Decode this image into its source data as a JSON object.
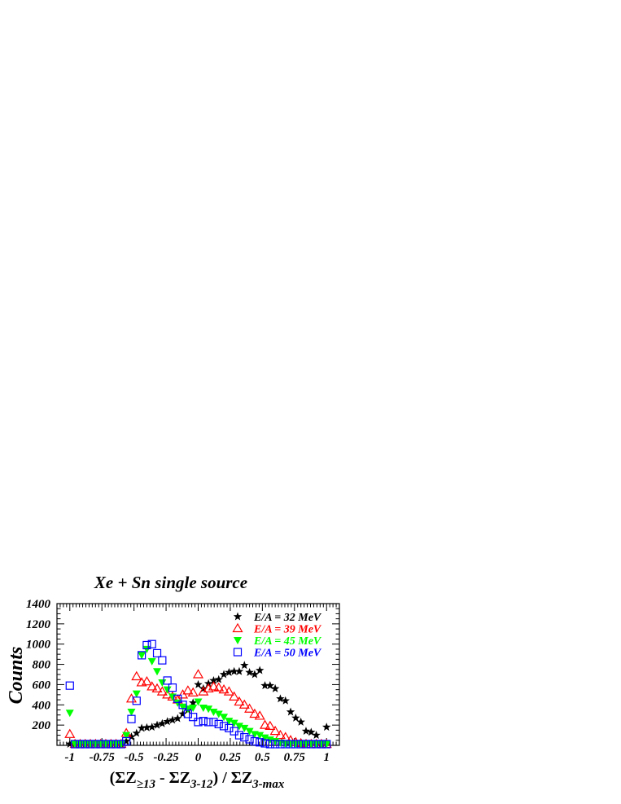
{
  "chart_data": {
    "type": "scatter",
    "title": "Xe + Sn single source",
    "ylabel": "Counts",
    "xlabel": {
      "open": "(ΣZ",
      "sub1": "≥13",
      "mid": " - ΣZ",
      "sub2": "3-12",
      "close": ") / ΣZ",
      "sub3": "3-max"
    },
    "xlim": [
      -1.1,
      1.1
    ],
    "ylim": [
      0,
      1400
    ],
    "x_ticks": [
      {
        "v": -1,
        "label": "-1"
      },
      {
        "v": -0.75,
        "label": "-0.75"
      },
      {
        "v": -0.5,
        "label": "-0.5"
      },
      {
        "v": -0.25,
        "label": "-0.25"
      },
      {
        "v": 0,
        "label": "0"
      },
      {
        "v": 0.25,
        "label": "0.25"
      },
      {
        "v": 0.5,
        "label": "0.5"
      },
      {
        "v": 0.75,
        "label": "0.75"
      },
      {
        "v": 1,
        "label": "1"
      }
    ],
    "y_ticks": [
      {
        "v": 200,
        "label": "200"
      },
      {
        "v": 400,
        "label": "400"
      },
      {
        "v": 600,
        "label": "600"
      },
      {
        "v": 800,
        "label": "800"
      },
      {
        "v": 1000,
        "label": "1000"
      },
      {
        "v": 1200,
        "label": "1200"
      },
      {
        "v": 1400,
        "label": "1400"
      }
    ],
    "legend_position": "top-right",
    "series": [
      {
        "name": "E/A = 32 MeV",
        "color": "#000000",
        "marker": "star",
        "points": [
          [
            -1.0,
            0
          ],
          [
            -0.96,
            0
          ],
          [
            -0.92,
            0
          ],
          [
            -0.88,
            0
          ],
          [
            -0.84,
            0
          ],
          [
            -0.8,
            0
          ],
          [
            -0.76,
            0
          ],
          [
            -0.72,
            0
          ],
          [
            -0.68,
            0
          ],
          [
            -0.64,
            0
          ],
          [
            -0.6,
            0
          ],
          [
            -0.56,
            40
          ],
          [
            -0.52,
            85
          ],
          [
            -0.48,
            120
          ],
          [
            -0.44,
            170
          ],
          [
            -0.4,
            175
          ],
          [
            -0.36,
            180
          ],
          [
            -0.32,
            200
          ],
          [
            -0.28,
            215
          ],
          [
            -0.24,
            235
          ],
          [
            -0.2,
            250
          ],
          [
            -0.16,
            265
          ],
          [
            -0.12,
            310
          ],
          [
            -0.08,
            350
          ],
          [
            -0.04,
            420
          ],
          [
            0.0,
            600
          ],
          [
            0.04,
            560
          ],
          [
            0.08,
            610
          ],
          [
            0.12,
            640
          ],
          [
            0.16,
            650
          ],
          [
            0.2,
            700
          ],
          [
            0.24,
            720
          ],
          [
            0.28,
            730
          ],
          [
            0.32,
            730
          ],
          [
            0.36,
            790
          ],
          [
            0.4,
            720
          ],
          [
            0.44,
            700
          ],
          [
            0.48,
            740
          ],
          [
            0.52,
            590
          ],
          [
            0.56,
            590
          ],
          [
            0.6,
            560
          ],
          [
            0.64,
            460
          ],
          [
            0.68,
            440
          ],
          [
            0.72,
            330
          ],
          [
            0.76,
            270
          ],
          [
            0.8,
            230
          ],
          [
            0.84,
            140
          ],
          [
            0.88,
            130
          ],
          [
            0.92,
            100
          ],
          [
            0.96,
            20
          ],
          [
            1.0,
            180
          ]
        ]
      },
      {
        "name": "E/A = 39 MeV",
        "color": "#ff0000",
        "marker": "triangle-up-open",
        "points": [
          [
            -1.0,
            110
          ],
          [
            -0.96,
            0
          ],
          [
            -0.92,
            0
          ],
          [
            -0.88,
            0
          ],
          [
            -0.84,
            0
          ],
          [
            -0.8,
            0
          ],
          [
            -0.76,
            0
          ],
          [
            -0.72,
            0
          ],
          [
            -0.68,
            0
          ],
          [
            -0.64,
            0
          ],
          [
            -0.6,
            0
          ],
          [
            -0.56,
            120
          ],
          [
            -0.52,
            460
          ],
          [
            -0.48,
            680
          ],
          [
            -0.44,
            620
          ],
          [
            -0.4,
            630
          ],
          [
            -0.36,
            580
          ],
          [
            -0.32,
            560
          ],
          [
            -0.28,
            530
          ],
          [
            -0.24,
            500
          ],
          [
            -0.2,
            480
          ],
          [
            -0.16,
            450
          ],
          [
            -0.12,
            500
          ],
          [
            -0.08,
            540
          ],
          [
            -0.04,
            520
          ],
          [
            0.0,
            700
          ],
          [
            0.04,
            530
          ],
          [
            0.08,
            560
          ],
          [
            0.12,
            580
          ],
          [
            0.16,
            570
          ],
          [
            0.2,
            550
          ],
          [
            0.24,
            530
          ],
          [
            0.28,
            480
          ],
          [
            0.32,
            430
          ],
          [
            0.36,
            400
          ],
          [
            0.4,
            360
          ],
          [
            0.44,
            310
          ],
          [
            0.48,
            290
          ],
          [
            0.52,
            200
          ],
          [
            0.56,
            190
          ],
          [
            0.6,
            140
          ],
          [
            0.64,
            100
          ],
          [
            0.68,
            80
          ],
          [
            0.72,
            50
          ],
          [
            0.76,
            30
          ],
          [
            0.8,
            20
          ],
          [
            0.84,
            10
          ],
          [
            0.88,
            5
          ],
          [
            0.92,
            0
          ],
          [
            0.96,
            0
          ],
          [
            1.0,
            0
          ]
        ]
      },
      {
        "name": "E/A = 45 MeV",
        "color": "#00ff00",
        "marker": "triangle-down",
        "points": [
          [
            -1.0,
            320
          ],
          [
            -0.96,
            0
          ],
          [
            -0.92,
            0
          ],
          [
            -0.88,
            0
          ],
          [
            -0.84,
            0
          ],
          [
            -0.8,
            0
          ],
          [
            -0.76,
            0
          ],
          [
            -0.72,
            0
          ],
          [
            -0.68,
            0
          ],
          [
            -0.64,
            0
          ],
          [
            -0.6,
            0
          ],
          [
            -0.56,
            100
          ],
          [
            -0.52,
            330
          ],
          [
            -0.48,
            510
          ],
          [
            -0.44,
            890
          ],
          [
            -0.4,
            950
          ],
          [
            -0.36,
            830
          ],
          [
            -0.32,
            730
          ],
          [
            -0.28,
            620
          ],
          [
            -0.24,
            550
          ],
          [
            -0.2,
            480
          ],
          [
            -0.16,
            420
          ],
          [
            -0.12,
            380
          ],
          [
            -0.08,
            360
          ],
          [
            -0.04,
            370
          ],
          [
            0.0,
            430
          ],
          [
            0.04,
            370
          ],
          [
            0.08,
            360
          ],
          [
            0.12,
            330
          ],
          [
            0.16,
            310
          ],
          [
            0.2,
            280
          ],
          [
            0.24,
            240
          ],
          [
            0.28,
            220
          ],
          [
            0.32,
            190
          ],
          [
            0.36,
            170
          ],
          [
            0.4,
            140
          ],
          [
            0.44,
            110
          ],
          [
            0.48,
            100
          ],
          [
            0.52,
            75
          ],
          [
            0.56,
            55
          ],
          [
            0.6,
            40
          ],
          [
            0.64,
            25
          ],
          [
            0.68,
            15
          ],
          [
            0.72,
            10
          ],
          [
            0.76,
            5
          ],
          [
            0.8,
            0
          ],
          [
            0.84,
            0
          ],
          [
            0.88,
            0
          ],
          [
            0.92,
            0
          ],
          [
            0.96,
            0
          ],
          [
            1.0,
            0
          ]
        ]
      },
      {
        "name": "E/A = 50 MeV",
        "color": "#0000ff",
        "marker": "square-open",
        "points": [
          [
            -1.0,
            590
          ],
          [
            -0.96,
            0
          ],
          [
            -0.92,
            0
          ],
          [
            -0.88,
            0
          ],
          [
            -0.84,
            0
          ],
          [
            -0.8,
            0
          ],
          [
            -0.76,
            0
          ],
          [
            -0.72,
            0
          ],
          [
            -0.68,
            0
          ],
          [
            -0.64,
            0
          ],
          [
            -0.6,
            0
          ],
          [
            -0.56,
            40
          ],
          [
            -0.52,
            260
          ],
          [
            -0.48,
            440
          ],
          [
            -0.44,
            890
          ],
          [
            -0.4,
            990
          ],
          [
            -0.36,
            1000
          ],
          [
            -0.32,
            910
          ],
          [
            -0.28,
            840
          ],
          [
            -0.24,
            640
          ],
          [
            -0.2,
            570
          ],
          [
            -0.16,
            460
          ],
          [
            -0.12,
            400
          ],
          [
            -0.08,
            310
          ],
          [
            -0.04,
            280
          ],
          [
            0.0,
            230
          ],
          [
            0.04,
            240
          ],
          [
            0.08,
            230
          ],
          [
            0.12,
            230
          ],
          [
            0.16,
            210
          ],
          [
            0.2,
            190
          ],
          [
            0.24,
            170
          ],
          [
            0.28,
            140
          ],
          [
            0.32,
            100
          ],
          [
            0.36,
            80
          ],
          [
            0.4,
            60
          ],
          [
            0.44,
            40
          ],
          [
            0.48,
            30
          ],
          [
            0.52,
            20
          ],
          [
            0.56,
            10
          ],
          [
            0.6,
            5
          ],
          [
            0.64,
            0
          ],
          [
            0.68,
            0
          ],
          [
            0.72,
            0
          ],
          [
            0.76,
            0
          ],
          [
            0.8,
            0
          ],
          [
            0.84,
            0
          ],
          [
            0.88,
            0
          ],
          [
            0.92,
            0
          ],
          [
            0.96,
            0
          ],
          [
            1.0,
            0
          ]
        ]
      }
    ]
  }
}
